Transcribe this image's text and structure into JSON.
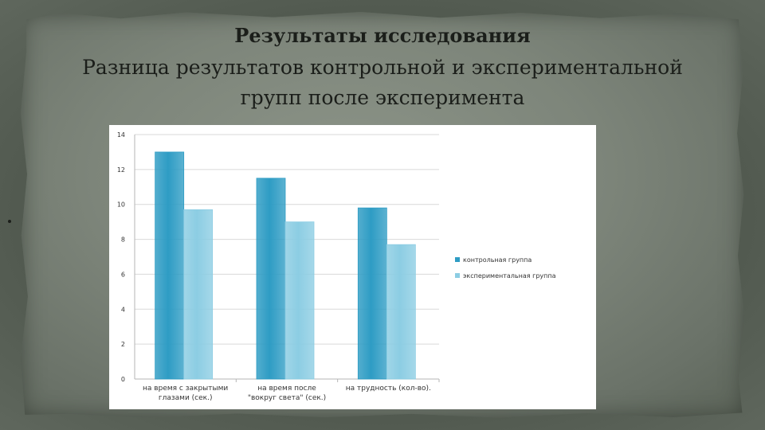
{
  "slide": {
    "title": "Результаты исследования",
    "subtitle_line1": "Разница результатов контрольной и экспериментальной",
    "subtitle_line2": "групп после эксперимента"
  },
  "colors": {
    "control": "#2e9cc4",
    "experimental": "#8ccde3",
    "grid": "#d9d9d9"
  },
  "chart_data": {
    "type": "bar",
    "title": "",
    "xlabel": "",
    "ylabel": "",
    "ylim": [
      0,
      14
    ],
    "yticks": [
      0,
      2,
      4,
      6,
      8,
      10,
      12,
      14
    ],
    "grid": true,
    "legend_position": "right",
    "categories": [
      [
        "на время с закрытыми",
        "глазами (сек.)"
      ],
      [
        "на время после",
        "\"вокруг света\" (сек.)"
      ],
      [
        "на трудность (кол-во)."
      ]
    ],
    "series": [
      {
        "name": "контрольная группа",
        "color": "#2e9cc4",
        "values": [
          13,
          11.5,
          9.8
        ]
      },
      {
        "name": "экспериментальная группа",
        "color": "#8ccde3",
        "values": [
          9.7,
          9,
          7.7
        ]
      }
    ]
  }
}
